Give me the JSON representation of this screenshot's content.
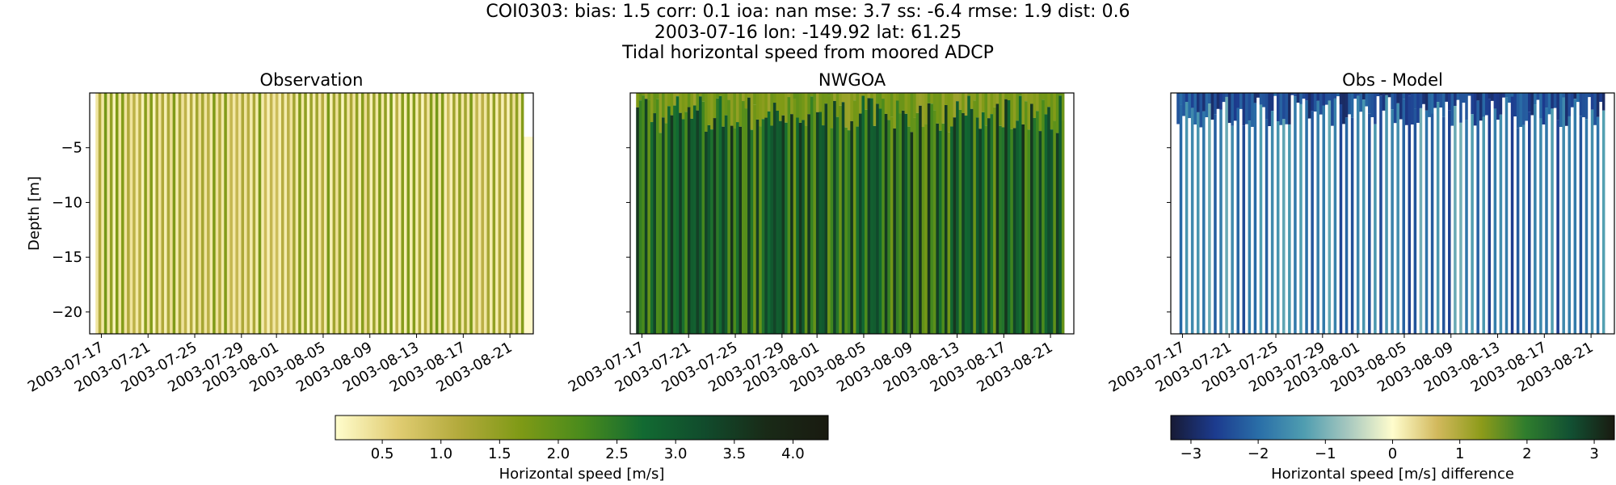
{
  "suptitle": {
    "line1": "COI0303: bias: 1.5  corr: 0.1  ioa: nan  mse: 3.7  ss: -6.4  rmse: 1.9  dist: 0.6",
    "line2": "2003-07-16 lon: -149.92 lat: 61.25",
    "line3": "Tidal horizontal speed from moored ADCP"
  },
  "chart_data": [
    {
      "type": "heatmap",
      "title": "Observation",
      "ylabel": "Depth [m]",
      "xlabel": "",
      "x_ticks": [
        "2003-07-17",
        "2003-07-21",
        "2003-07-25",
        "2003-07-29",
        "2003-08-01",
        "2003-08-05",
        "2003-08-09",
        "2003-08-13",
        "2003-08-17",
        "2003-08-21"
      ],
      "y_ticks": [
        -5,
        -10,
        -15,
        -20
      ],
      "xlim": [
        "2003-07-16",
        "2003-08-23"
      ],
      "ylim": [
        -22,
        0
      ],
      "colormap": "speed",
      "value_range": [
        0.1,
        4.3
      ],
      "band_count": 150,
      "columns_levels": "mostly 0.5-1.8 m/s, alternating light/olive stripes"
    },
    {
      "type": "heatmap",
      "title": "NWGOA",
      "ylabel": "",
      "xlabel": "",
      "x_ticks": [
        "2003-07-17",
        "2003-07-21",
        "2003-07-25",
        "2003-07-29",
        "2003-08-01",
        "2003-08-05",
        "2003-08-09",
        "2003-08-13",
        "2003-08-17",
        "2003-08-21"
      ],
      "y_ticks": [
        -5,
        -10,
        -15,
        -20
      ],
      "xlim": [
        "2003-07-16",
        "2003-08-23"
      ],
      "ylim": [
        -22,
        0
      ],
      "colormap": "speed",
      "value_range": [
        0.1,
        4.3
      ],
      "band_count": 150,
      "columns_levels": "mostly 2.0-3.8 m/s, dark green stripes"
    },
    {
      "type": "heatmap",
      "title": "Obs - Model",
      "ylabel": "",
      "xlabel": "",
      "x_ticks": [
        "2003-07-17",
        "2003-07-21",
        "2003-07-25",
        "2003-07-29",
        "2003-08-01",
        "2003-08-05",
        "2003-08-09",
        "2003-08-13",
        "2003-08-17",
        "2003-08-21"
      ],
      "y_ticks": [
        -5,
        -10,
        -15,
        -20
      ],
      "xlim": [
        "2003-07-16",
        "2003-08-23"
      ],
      "ylim": [
        -22,
        0
      ],
      "colormap": "diverging",
      "value_range": [
        -3.3,
        3.3
      ],
      "band_count": 150,
      "columns_levels": "mostly -3 to -0.5 m/s difference, blue stripes"
    }
  ],
  "colorbars": [
    {
      "label": "Horizontal speed [m/s]",
      "ticks": [
        "0.5",
        "1.0",
        "1.5",
        "2.0",
        "2.5",
        "3.0",
        "3.5",
        "4.0"
      ],
      "tick_values": [
        0.5,
        1.0,
        1.5,
        2.0,
        2.5,
        3.0,
        3.5,
        4.0
      ],
      "range": [
        0.1,
        4.3
      ],
      "colors": [
        "#fffdcd",
        "#e1cd73",
        "#b3aa3c",
        "#7f9a16",
        "#4a8b1c",
        "#126a32",
        "#114b2c",
        "#192a17",
        "#191a10"
      ]
    },
    {
      "label": "Horizontal speed [m/s] difference",
      "ticks": [
        "−3",
        "−2",
        "−1",
        "0",
        "1",
        "2",
        "3"
      ],
      "tick_values": [
        -3,
        -2,
        -1,
        0,
        1,
        2,
        3
      ],
      "range": [
        -3.3,
        3.3
      ],
      "colors": [
        "#171a35",
        "#1c3b8e",
        "#2a6fa8",
        "#4f9db0",
        "#a7c8bf",
        "#fffdcd",
        "#d2b95d",
        "#8d9b1a",
        "#2f7d2d",
        "#125133",
        "#191a10"
      ]
    }
  ]
}
